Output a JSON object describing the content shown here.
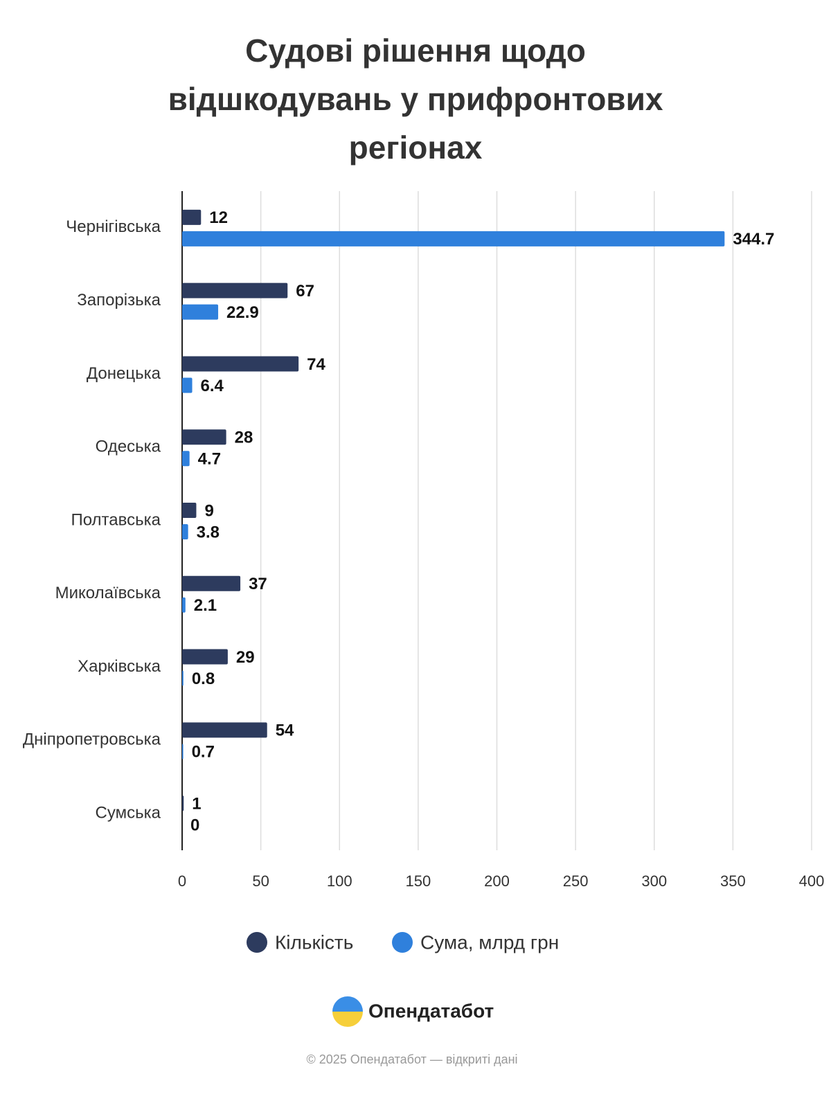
{
  "chart_data": {
    "type": "bar",
    "orientation": "horizontal",
    "title": "Судові рішення щодо відшкодувань у прифронтових регіонах",
    "categories": [
      "Чернігівська",
      "Запорізька",
      "Донецька",
      "Одеська",
      "Полтавська",
      "Миколаївська",
      "Харківська",
      "Дніпропетровська",
      "Сумська"
    ],
    "series": [
      {
        "name": "Кількість",
        "color": "#2d3b5e",
        "values": [
          12,
          67,
          74,
          28,
          9,
          37,
          29,
          54,
          1
        ]
      },
      {
        "name": "Сума, млрд грн",
        "color": "#2f80dc",
        "values": [
          344.7,
          22.9,
          6.4,
          4.7,
          3.8,
          2.1,
          0.8,
          0.7,
          0
        ]
      }
    ],
    "xlim": [
      0,
      400
    ],
    "xticks": [
      0,
      50,
      100,
      150,
      200,
      250,
      300,
      350,
      400
    ],
    "grid": true,
    "legend": "bottom"
  },
  "brand": "Опендатабот",
  "footer": "© 2025 Опендатабот — відкриті дані"
}
